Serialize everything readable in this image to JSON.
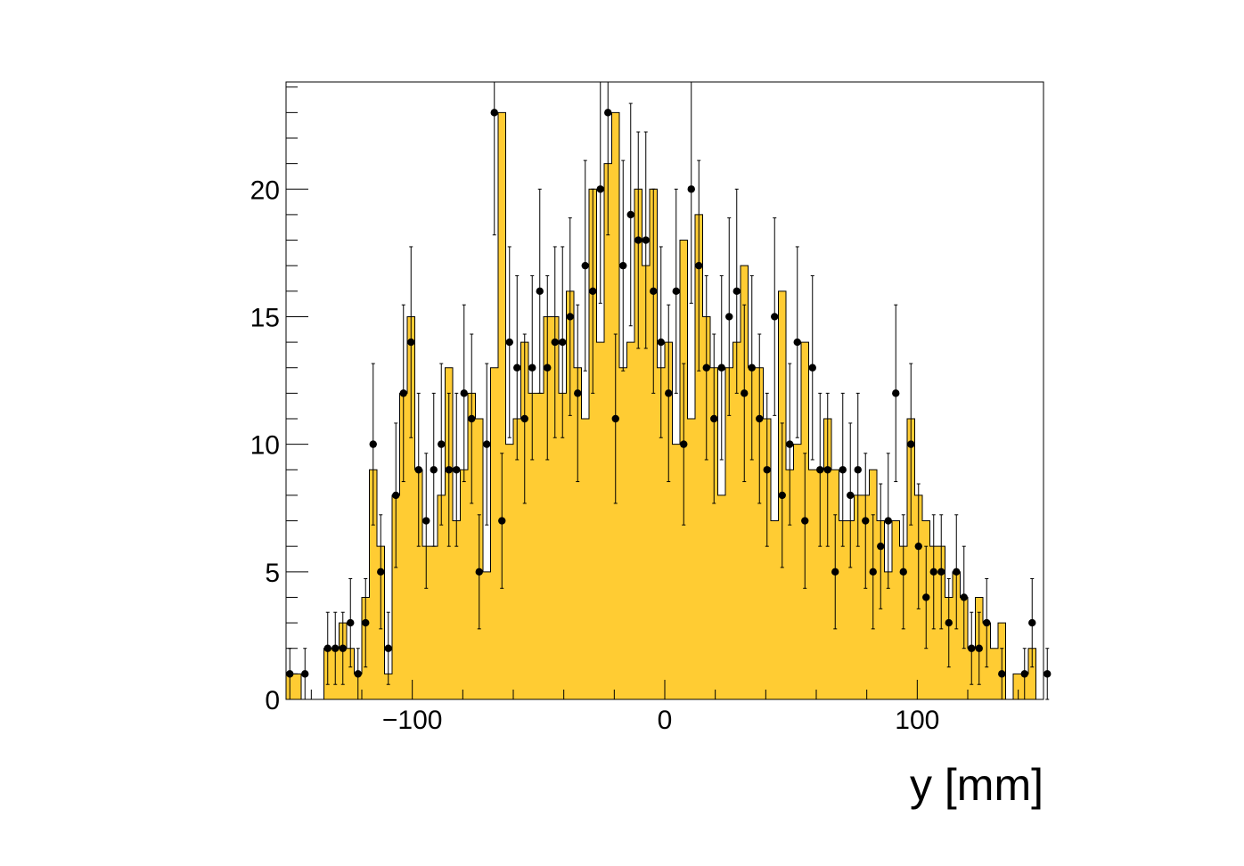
{
  "chart_data": {
    "type": "bar",
    "xlabel": "y [mm]",
    "ylabel": "",
    "xlim": [
      -150,
      150
    ],
    "ylim": [
      0,
      24.2
    ],
    "bin_width": 3,
    "x_ticks": [
      -100,
      0,
      100
    ],
    "x_tick_labels": [
      "−100",
      "0",
      "100"
    ],
    "y_ticks": [
      0,
      5,
      10,
      15,
      20
    ],
    "y_tick_labels": [
      "0",
      "5",
      "10",
      "15",
      "20"
    ],
    "grid": false,
    "legend": "none",
    "colors": {
      "histogram_fill": "#ffcc33",
      "histogram_line": "#000000",
      "points": "#000000"
    },
    "series": [
      {
        "kind": "histogram",
        "values": [
          1,
          1,
          0,
          0,
          0,
          2,
          2,
          3,
          2,
          1,
          4,
          9,
          6,
          1,
          8,
          12,
          15,
          9,
          6,
          6,
          8,
          13,
          7,
          9,
          12,
          11,
          5,
          13,
          23,
          10,
          11,
          14,
          12,
          12,
          15,
          15,
          12,
          16,
          13,
          11,
          20,
          14,
          21,
          23,
          13,
          14,
          20,
          17,
          20,
          13,
          14,
          10,
          18,
          11,
          19,
          15,
          13,
          8,
          13,
          14,
          17,
          13,
          13,
          11,
          7,
          16,
          9,
          10,
          14,
          9,
          9,
          11,
          9,
          7,
          7,
          8,
          8,
          9,
          7,
          5,
          7,
          6,
          11,
          8,
          7,
          6,
          6,
          4,
          5,
          4,
          2,
          4,
          3,
          2,
          3,
          0,
          1,
          1,
          2,
          0,
          1
        ]
      },
      {
        "kind": "points",
        "values": [
          1,
          0,
          1,
          0,
          0,
          2,
          2,
          2,
          3,
          1,
          3,
          10,
          5,
          2,
          8,
          12,
          14,
          9,
          7,
          9,
          10,
          9,
          9,
          12,
          11,
          5,
          10,
          23,
          7,
          14,
          13,
          11,
          13,
          16,
          13,
          14,
          14,
          15,
          12,
          17,
          16,
          20,
          23,
          11,
          17,
          19,
          18,
          18,
          16,
          14,
          12,
          16,
          10,
          20,
          17,
          13,
          11,
          13,
          15,
          16,
          12,
          13,
          11,
          9,
          15,
          8,
          10,
          14,
          7,
          13,
          9,
          9,
          5,
          9,
          8,
          9,
          7,
          5,
          6,
          7,
          12,
          5,
          10,
          6,
          4,
          5,
          5,
          3,
          5,
          4,
          2,
          2,
          3,
          0,
          1,
          0,
          0,
          1,
          3,
          0,
          1
        ]
      }
    ]
  }
}
